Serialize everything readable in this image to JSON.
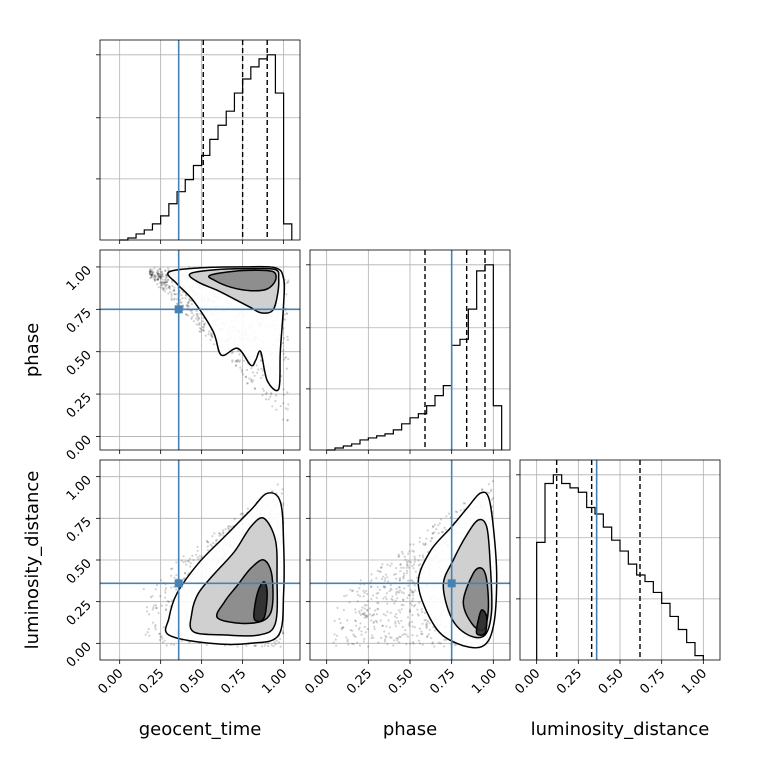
{
  "chart_data": {
    "type": "corner",
    "parameters": [
      "geocent_time",
      "phase",
      "luminosity_distance"
    ],
    "truths": [
      0.36,
      0.75,
      0.36
    ],
    "truth_color": "#4682b4",
    "tick_values": [
      0.0,
      0.25,
      0.5,
      0.75,
      1.0
    ],
    "tick_labels": [
      "0.00",
      "0.25",
      "0.50",
      "0.75",
      "1.00"
    ],
    "grid": true,
    "diagonals": [
      {
        "name": "geocent_time",
        "bin_edges": [
          0.0,
          0.05,
          0.1,
          0.15,
          0.2,
          0.25,
          0.3,
          0.35,
          0.4,
          0.45,
          0.5,
          0.55,
          0.6,
          0.65,
          0.7,
          0.75,
          0.8,
          0.85,
          0.9,
          0.95,
          1.0,
          1.05
        ],
        "counts": [
          0,
          1,
          3,
          5,
          8,
          12,
          18,
          24,
          30,
          37,
          42,
          50,
          57,
          64,
          73,
          80,
          86,
          90,
          92,
          73,
          8
        ],
        "quantiles": [
          0.51,
          0.75,
          0.9
        ],
        "xlim": [
          -0.12,
          1.1
        ]
      },
      {
        "name": "phase",
        "bin_edges": [
          0.0,
          0.05,
          0.1,
          0.15,
          0.2,
          0.25,
          0.3,
          0.35,
          0.4,
          0.45,
          0.5,
          0.55,
          0.6,
          0.65,
          0.7,
          0.75,
          0.8,
          0.85,
          0.9,
          0.95,
          1.0,
          1.05
        ],
        "counts": [
          0,
          1,
          2,
          3,
          5,
          6,
          7,
          8,
          10,
          13,
          16,
          18,
          22,
          27,
          32,
          52,
          55,
          70,
          89,
          92,
          22
        ],
        "quantiles": [
          0.59,
          0.84,
          0.95
        ],
        "xlim": [
          -0.1,
          1.1
        ]
      },
      {
        "name": "luminosity_distance",
        "bin_edges": [
          0.0,
          0.05,
          0.1,
          0.15,
          0.2,
          0.25,
          0.3,
          0.35,
          0.4,
          0.45,
          0.5,
          0.55,
          0.6,
          0.65,
          0.7,
          0.75,
          0.8,
          0.85,
          0.9,
          0.95,
          1.0
        ],
        "counts": [
          54,
          81,
          85,
          81,
          79,
          77,
          70,
          67,
          61,
          55,
          50,
          44,
          39,
          36,
          31,
          26,
          20,
          14,
          8,
          2
        ],
        "quantiles": [
          0.12,
          0.33,
          0.62
        ],
        "xlim": [
          -0.1,
          1.1
        ]
      }
    ],
    "pairs": [
      {
        "x": "geocent_time",
        "y": "phase",
        "xlim": [
          -0.12,
          1.1
        ],
        "ylim": [
          -0.08,
          1.1
        ],
        "points": "wedge-corner",
        "density_peak": [
          0.82,
          0.95
        ],
        "contours": [
          [
            [
              0.3,
              0.97
            ],
            [
              0.5,
              0.995
            ],
            [
              0.75,
              1.0
            ],
            [
              0.95,
              0.995
            ],
            [
              1.0,
              0.93
            ],
            [
              1.0,
              0.78
            ],
            [
              0.98,
              0.5
            ],
            [
              0.97,
              0.28
            ],
            [
              0.9,
              0.33
            ],
            [
              0.86,
              0.5
            ],
            [
              0.83,
              0.45
            ],
            [
              0.8,
              0.42
            ],
            [
              0.72,
              0.52
            ],
            [
              0.62,
              0.48
            ],
            [
              0.57,
              0.62
            ],
            [
              0.45,
              0.8
            ],
            [
              0.35,
              0.9
            ]
          ],
          [
            [
              0.43,
              0.96
            ],
            [
              0.6,
              0.985
            ],
            [
              0.8,
              0.99
            ],
            [
              0.95,
              0.985
            ],
            [
              0.97,
              0.93
            ],
            [
              0.96,
              0.82
            ],
            [
              0.93,
              0.74
            ],
            [
              0.86,
              0.73
            ],
            [
              0.8,
              0.76
            ],
            [
              0.72,
              0.8
            ],
            [
              0.6,
              0.86
            ],
            [
              0.48,
              0.91
            ]
          ],
          [
            [
              0.55,
              0.95
            ],
            [
              0.7,
              0.975
            ],
            [
              0.85,
              0.98
            ],
            [
              0.94,
              0.97
            ],
            [
              0.95,
              0.92
            ],
            [
              0.9,
              0.87
            ],
            [
              0.8,
              0.86
            ],
            [
              0.68,
              0.88
            ],
            [
              0.58,
              0.92
            ]
          ]
        ]
      },
      {
        "x": "geocent_time",
        "y": "luminosity_distance",
        "xlim": [
          -0.12,
          1.1
        ],
        "ylim": [
          -0.1,
          1.1
        ],
        "points": "wedge-right",
        "density_peak": [
          0.85,
          0.25
        ],
        "contours": [
          [
            [
              0.3,
              0.05
            ],
            [
              0.55,
              0.0
            ],
            [
              0.8,
              0.0
            ],
            [
              0.97,
              0.05
            ],
            [
              1.0,
              0.3
            ],
            [
              1.0,
              0.6
            ],
            [
              0.98,
              0.85
            ],
            [
              0.9,
              0.9
            ],
            [
              0.8,
              0.8
            ],
            [
              0.65,
              0.65
            ],
            [
              0.48,
              0.48
            ],
            [
              0.35,
              0.3
            ],
            [
              0.3,
              0.15
            ]
          ],
          [
            [
              0.45,
              0.07
            ],
            [
              0.65,
              0.05
            ],
            [
              0.85,
              0.05
            ],
            [
              0.95,
              0.12
            ],
            [
              0.96,
              0.4
            ],
            [
              0.95,
              0.62
            ],
            [
              0.88,
              0.75
            ],
            [
              0.8,
              0.7
            ],
            [
              0.7,
              0.55
            ],
            [
              0.58,
              0.42
            ],
            [
              0.48,
              0.3
            ],
            [
              0.44,
              0.18
            ]
          ],
          [
            [
              0.6,
              0.15
            ],
            [
              0.8,
              0.12
            ],
            [
              0.92,
              0.18
            ],
            [
              0.93,
              0.4
            ],
            [
              0.88,
              0.5
            ],
            [
              0.8,
              0.45
            ],
            [
              0.72,
              0.35
            ],
            [
              0.64,
              0.25
            ]
          ],
          [
            [
              0.82,
              0.15
            ],
            [
              0.88,
              0.15
            ],
            [
              0.9,
              0.3
            ],
            [
              0.88,
              0.37
            ],
            [
              0.84,
              0.3
            ]
          ]
        ]
      },
      {
        "x": "phase",
        "y": "luminosity_distance",
        "xlim": [
          -0.1,
          1.1
        ],
        "ylim": [
          -0.1,
          1.1
        ],
        "points": "wedge-right",
        "density_peak": [
          0.93,
          0.12
        ],
        "contours": [
          [
            [
              0.55,
              0.35
            ],
            [
              0.65,
              0.1
            ],
            [
              0.78,
              0.0
            ],
            [
              0.93,
              -0.02
            ],
            [
              1.0,
              0.1
            ],
            [
              1.02,
              0.4
            ],
            [
              1.0,
              0.7
            ],
            [
              0.97,
              0.88
            ],
            [
              0.92,
              0.9
            ],
            [
              0.85,
              0.82
            ],
            [
              0.75,
              0.7
            ],
            [
              0.62,
              0.55
            ]
          ],
          [
            [
              0.7,
              0.35
            ],
            [
              0.75,
              0.15
            ],
            [
              0.85,
              0.05
            ],
            [
              0.95,
              0.05
            ],
            [
              0.99,
              0.2
            ],
            [
              0.98,
              0.5
            ],
            [
              0.96,
              0.7
            ],
            [
              0.91,
              0.74
            ],
            [
              0.84,
              0.65
            ],
            [
              0.76,
              0.5
            ]
          ],
          [
            [
              0.82,
              0.25
            ],
            [
              0.87,
              0.12
            ],
            [
              0.94,
              0.08
            ],
            [
              0.97,
              0.2
            ],
            [
              0.96,
              0.38
            ],
            [
              0.93,
              0.45
            ],
            [
              0.88,
              0.42
            ]
          ],
          [
            [
              0.9,
              0.06
            ],
            [
              0.95,
              0.06
            ],
            [
              0.96,
              0.16
            ],
            [
              0.93,
              0.2
            ],
            [
              0.91,
              0.14
            ]
          ]
        ]
      }
    ]
  }
}
